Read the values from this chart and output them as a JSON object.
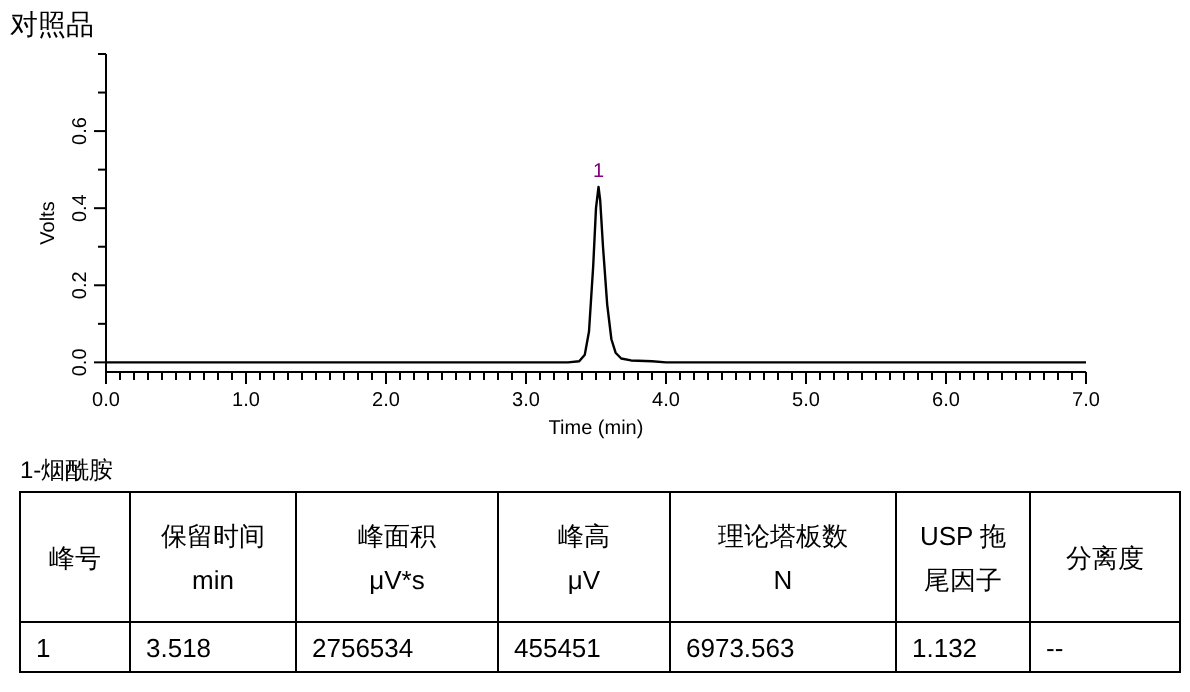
{
  "chart_data": {
    "type": "line",
    "title": "对照品",
    "xlabel": "Time (min)",
    "ylabel": "Volts",
    "xlim": [
      0,
      7
    ],
    "ylim": [
      -0.025,
      0.8
    ],
    "xticks": [
      {
        "value": 0,
        "label": "0.0"
      },
      {
        "value": 0.1,
        "label": null
      },
      {
        "value": 0.2,
        "label": null
      },
      {
        "value": 0.3,
        "label": null
      },
      {
        "value": 0.4,
        "label": null
      },
      {
        "value": 0.5,
        "label": null
      },
      {
        "value": 0.6,
        "label": null
      },
      {
        "value": 0.7,
        "label": null
      },
      {
        "value": 0.8,
        "label": null
      },
      {
        "value": 0.9,
        "label": null
      },
      {
        "value": 1,
        "label": "1.0"
      },
      {
        "value": 1.1,
        "label": null
      },
      {
        "value": 1.2,
        "label": null
      },
      {
        "value": 1.3,
        "label": null
      },
      {
        "value": 1.4,
        "label": null
      },
      {
        "value": 1.5,
        "label": null
      },
      {
        "value": 1.6,
        "label": null
      },
      {
        "value": 1.7,
        "label": null
      },
      {
        "value": 1.8,
        "label": null
      },
      {
        "value": 1.9,
        "label": null
      },
      {
        "value": 2,
        "label": "2.0"
      },
      {
        "value": 2.1,
        "label": null
      },
      {
        "value": 2.2,
        "label": null
      },
      {
        "value": 2.3,
        "label": null
      },
      {
        "value": 2.4,
        "label": null
      },
      {
        "value": 2.5,
        "label": null
      },
      {
        "value": 2.6,
        "label": null
      },
      {
        "value": 2.7,
        "label": null
      },
      {
        "value": 2.8,
        "label": null
      },
      {
        "value": 2.9,
        "label": null
      },
      {
        "value": 3,
        "label": "3.0"
      },
      {
        "value": 3.1,
        "label": null
      },
      {
        "value": 3.2,
        "label": null
      },
      {
        "value": 3.3,
        "label": null
      },
      {
        "value": 3.4,
        "label": null
      },
      {
        "value": 3.5,
        "label": null
      },
      {
        "value": 3.6,
        "label": null
      },
      {
        "value": 3.7,
        "label": null
      },
      {
        "value": 3.8,
        "label": null
      },
      {
        "value": 3.9,
        "label": null
      },
      {
        "value": 4,
        "label": "4.0"
      },
      {
        "value": 4.1,
        "label": null
      },
      {
        "value": 4.2,
        "label": null
      },
      {
        "value": 4.3,
        "label": null
      },
      {
        "value": 4.4,
        "label": null
      },
      {
        "value": 4.5,
        "label": null
      },
      {
        "value": 4.6,
        "label": null
      },
      {
        "value": 4.7,
        "label": null
      },
      {
        "value": 4.8,
        "label": null
      },
      {
        "value": 4.9,
        "label": null
      },
      {
        "value": 5,
        "label": "5.0"
      },
      {
        "value": 5.1,
        "label": null
      },
      {
        "value": 5.2,
        "label": null
      },
      {
        "value": 5.3,
        "label": null
      },
      {
        "value": 5.4,
        "label": null
      },
      {
        "value": 5.5,
        "label": null
      },
      {
        "value": 5.6,
        "label": null
      },
      {
        "value": 5.7,
        "label": null
      },
      {
        "value": 5.8,
        "label": null
      },
      {
        "value": 5.9,
        "label": null
      },
      {
        "value": 6,
        "label": "6.0"
      },
      {
        "value": 6.1,
        "label": null
      },
      {
        "value": 6.2,
        "label": null
      },
      {
        "value": 6.3,
        "label": null
      },
      {
        "value": 6.4,
        "label": null
      },
      {
        "value": 6.5,
        "label": null
      },
      {
        "value": 6.6,
        "label": null
      },
      {
        "value": 6.7,
        "label": null
      },
      {
        "value": 6.8,
        "label": null
      },
      {
        "value": 6.9,
        "label": null
      },
      {
        "value": 7,
        "label": "7.0"
      }
    ],
    "yticks": [
      {
        "value": 0,
        "label": "0.0"
      },
      {
        "value": 0.1,
        "label": null
      },
      {
        "value": 0.2,
        "label": "0.2"
      },
      {
        "value": 0.3,
        "label": null
      },
      {
        "value": 0.4,
        "label": "0.4"
      },
      {
        "value": 0.5,
        "label": null
      },
      {
        "value": 0.6,
        "label": "0.6"
      },
      {
        "value": 0.7,
        "label": null
      },
      {
        "value": 0.8,
        "label": null
      }
    ],
    "series": [
      {
        "color": "#000000",
        "x": [
          0,
          3.3,
          3.38,
          3.42,
          3.45,
          3.48,
          3.5,
          3.518,
          3.53,
          3.55,
          3.58,
          3.61,
          3.64,
          3.68,
          3.75,
          3.9,
          4.0,
          7.0
        ],
        "values": [
          0,
          0,
          0.003,
          0.02,
          0.08,
          0.25,
          0.4,
          0.455,
          0.42,
          0.3,
          0.15,
          0.06,
          0.025,
          0.01,
          0.005,
          0.003,
          0,
          0
        ]
      }
    ],
    "annotations": [
      {
        "text": "1",
        "x": 3.518,
        "y": 0.455
      },
      "1-烟酰胺",
      "峰号",
      "保留时间\nmin",
      "峰面积\nμV*s",
      "峰高\nμV",
      "理论塔板数\nN",
      "USP 拖尾因子",
      "分离度",
      "1",
      "3.518",
      "2756534",
      "455451",
      "6973.563",
      "1.132",
      "--"
    ],
    "grid": false,
    "marker": "none",
    "line_style": "solid"
  }
}
